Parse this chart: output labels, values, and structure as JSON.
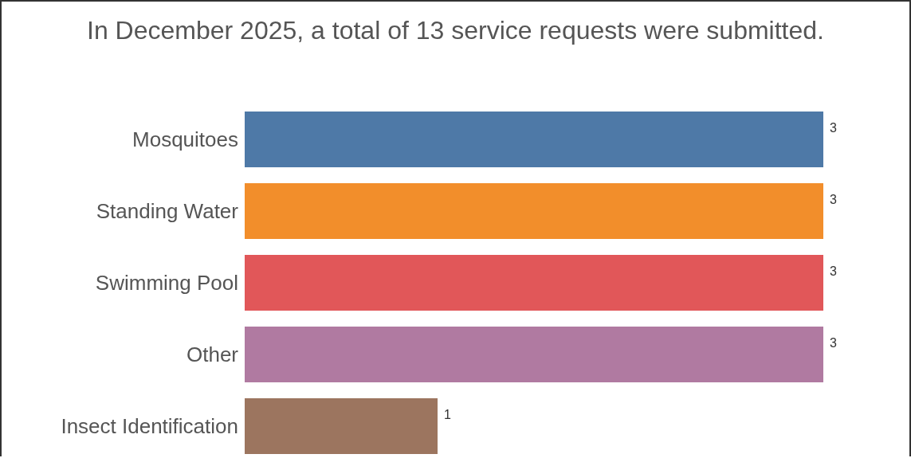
{
  "chart_data": {
    "type": "bar",
    "orientation": "horizontal",
    "title": "In December 2025, a total of 13 service requests were submitted.",
    "categories": [
      "Mosquitoes",
      "Standing Water",
      "Swimming Pool",
      "Other",
      "Insect Identification"
    ],
    "values": [
      3,
      3,
      3,
      3,
      1
    ],
    "colors": [
      "#4e79a7",
      "#f28e2b",
      "#e15759",
      "#b07aa1",
      "#9c755f"
    ],
    "data_labels": true,
    "grid": false,
    "legend": false
  }
}
